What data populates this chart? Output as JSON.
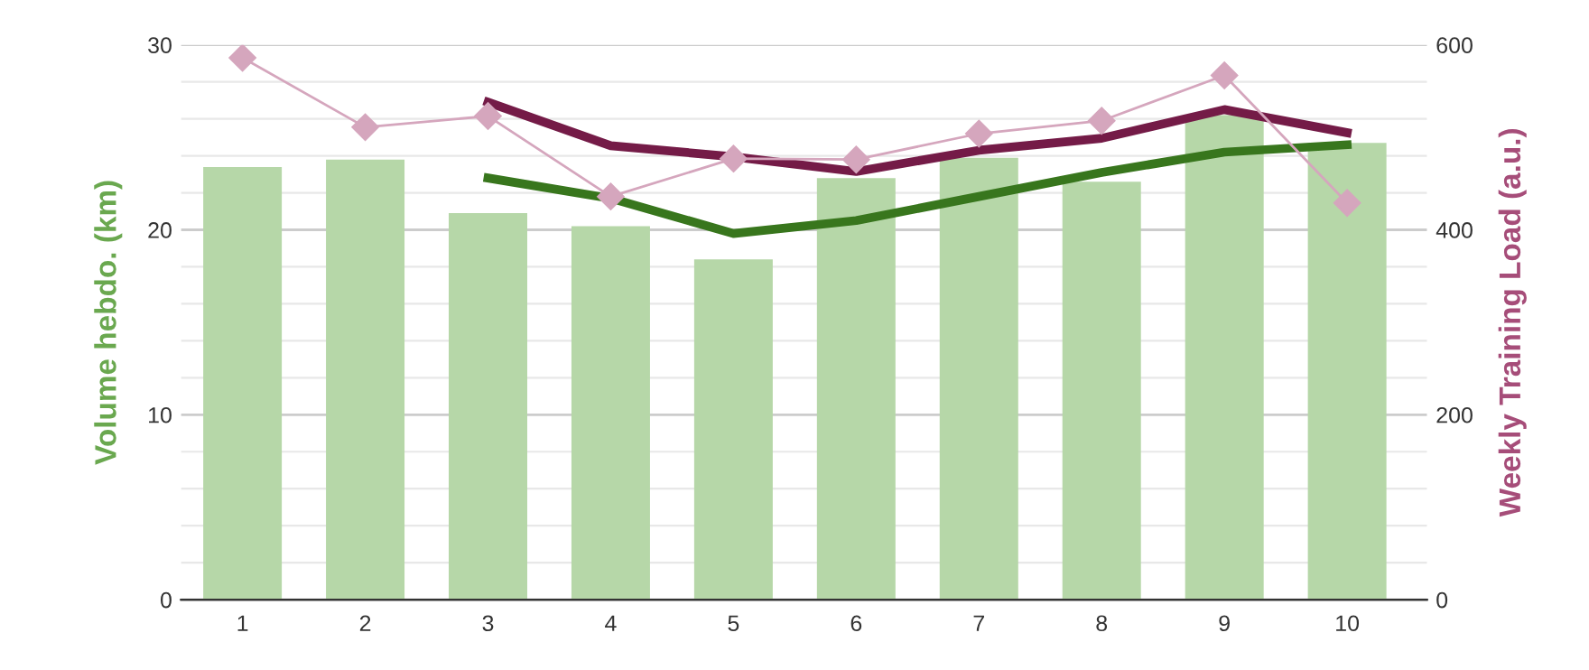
{
  "chart_data": {
    "type": "bar",
    "ylabel": "Volume hebdo. (km)",
    "y2label": "Weekly Training Load (a.u.)",
    "categories": [
      "1",
      "2",
      "3",
      "4",
      "5",
      "6",
      "7",
      "8",
      "9",
      "10"
    ],
    "series": [
      {
        "color": "#b6d7a8",
        "values": [
          23.4,
          23.8,
          20.9,
          20.2,
          18.4,
          22.8,
          23.9,
          22.6,
          26.2,
          24.7
        ]
      },
      {
        "type": "line",
        "color": "#38761d",
        "values": [
          null,
          null,
          22.8,
          21.7,
          19.8,
          20.5,
          21.8,
          23.1,
          24.2,
          24.6
        ]
      },
      {
        "type": "line",
        "axis": "y2",
        "color": "#741b47",
        "values": [
          null,
          null,
          538,
          491,
          479,
          463,
          486,
          499,
          530,
          505
        ]
      },
      {
        "type": "line",
        "axis": "y2",
        "color": "#d5a6bd",
        "marker": "diamond",
        "values": [
          586,
          511,
          523,
          436,
          477,
          476,
          504,
          518,
          567,
          429
        ]
      }
    ],
    "ylim": [
      0,
      30
    ],
    "yticks": [
      0,
      10,
      20,
      30
    ],
    "y2lim": [
      0,
      600
    ],
    "y2ticks": [
      0,
      200,
      400,
      600
    ],
    "grid": "y",
    "legend": false
  }
}
